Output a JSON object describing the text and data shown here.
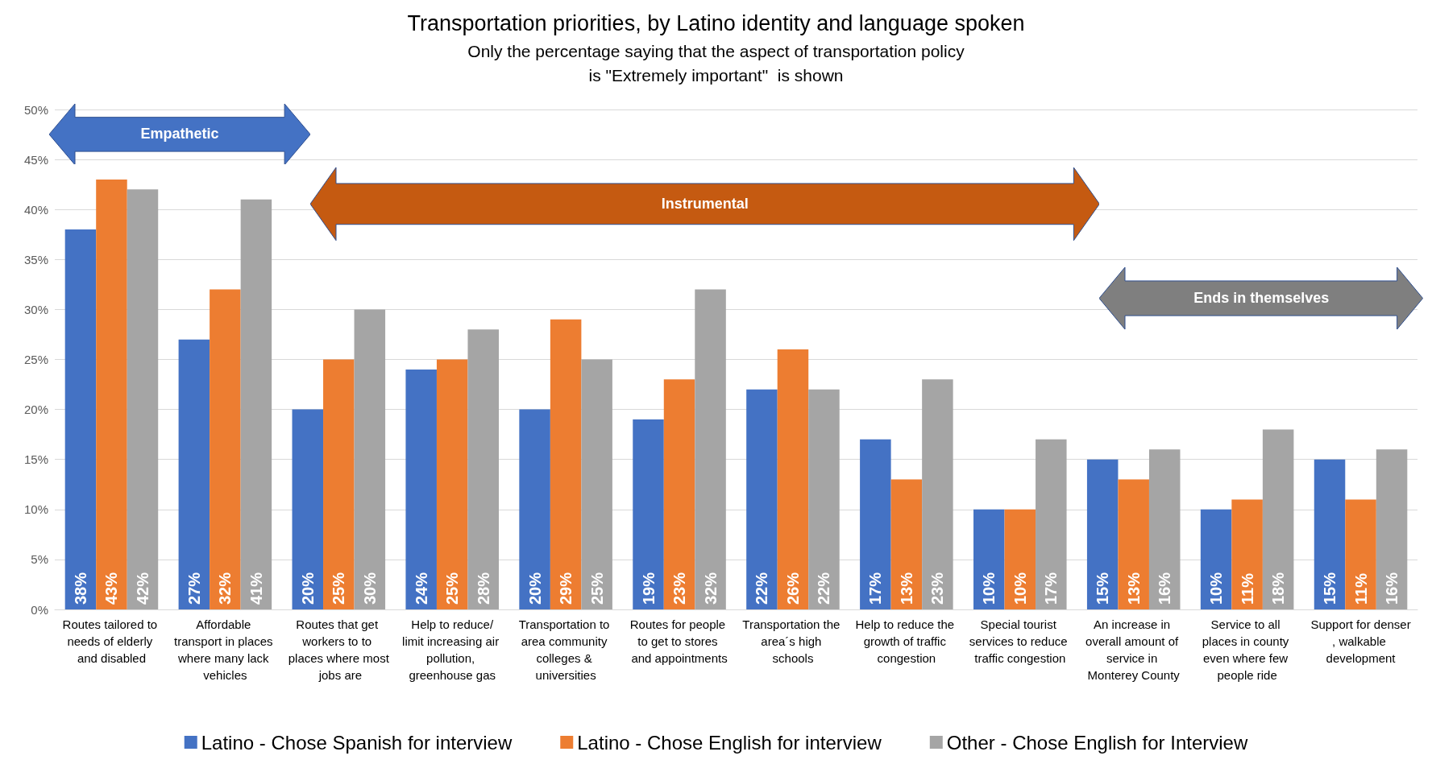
{
  "chart_data": {
    "type": "bar",
    "title": "Transportation priorities, by Latino identity and language spoken",
    "subtitle": "Only the percentage saying that the aspect of transportation policy\nis \"Extremely important\"  is shown",
    "categories": [
      "Routes tailored to needs of elderly and disabled",
      "Affordable transport in places where many lack vehicles",
      "Routes that get workers to to places where most jobs are",
      "Help to reduce/limit increasing air pollution, greenhouse gas",
      "Transportation to area community colleges & universities",
      "Routes for people to get to stores and appointments",
      "Transportation the area´s high schools",
      "Help to reduce the growth of traffic congestion",
      "Special tourist services to reduce traffic congestion",
      "An increase in overall amount of service in Monterey County",
      "Service to all places in county even where few people ride",
      "Support for denser, walkable development"
    ],
    "series": [
      {
        "name": "Latino - Chose Spanish for interview",
        "color": "#4472c4",
        "values": [
          38,
          27,
          20,
          24,
          20,
          19,
          22,
          17,
          10,
          15,
          10,
          15
        ],
        "value_labels": [
          "38%",
          "27%",
          "20%",
          "24%",
          "20%",
          "19%",
          "22%",
          "17%",
          "10%",
          "15%",
          "10%",
          "15%"
        ]
      },
      {
        "name": "Latino - Chose English for interview",
        "color": "#ed7d31",
        "values": [
          43,
          32,
          25,
          25,
          29,
          23,
          26,
          13,
          10,
          13,
          11,
          11
        ],
        "value_labels": [
          "43%",
          "32%",
          "25%",
          "25%",
          "29%",
          "23%",
          "26%",
          "13%",
          "10%",
          "13%",
          "11%",
          "11%"
        ]
      },
      {
        "name": "Other - Chose English for Interview",
        "color": "#a5a5a5",
        "values": [
          42,
          41,
          30,
          28,
          25,
          32,
          22,
          23,
          17,
          16,
          18,
          16
        ],
        "value_labels": [
          "42%",
          "41%",
          "30%",
          "28%",
          "25%",
          "32%",
          "22%",
          "23%",
          "17%",
          "16%",
          "18%",
          "16%"
        ]
      }
    ],
    "ylim": [
      0,
      50
    ],
    "yticks": [
      {
        "value": 0,
        "label": "0%"
      },
      {
        "value": 5,
        "label": "5%"
      },
      {
        "value": 10,
        "label": "10%"
      },
      {
        "value": 15,
        "label": "15%"
      },
      {
        "value": 20,
        "label": "20%"
      },
      {
        "value": 25,
        "label": "25%"
      },
      {
        "value": 30,
        "label": "30%"
      },
      {
        "value": 35,
        "label": "35%"
      },
      {
        "value": 40,
        "label": "40%"
      },
      {
        "value": 45,
        "label": "45%"
      },
      {
        "value": 50,
        "label": "50%"
      }
    ],
    "grid": "y",
    "legend": "bottom",
    "annotations": [
      "Empathetic",
      "Instrumental",
      "Ends in themselves"
    ]
  }
}
